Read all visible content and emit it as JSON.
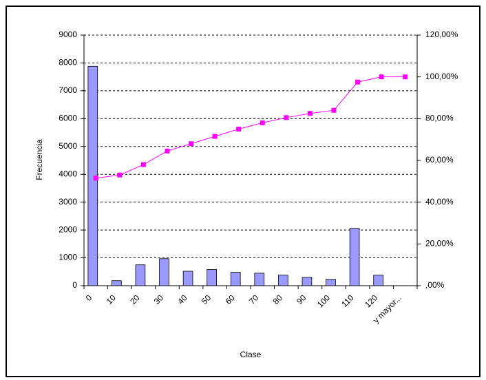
{
  "chart_data": {
    "type": "bar",
    "x_label": "Clase",
    "y_label": "Frecuencia",
    "categories": [
      "0",
      "10",
      "20",
      "30",
      "40",
      "50",
      "60",
      "70",
      "80",
      "90",
      "100",
      "110",
      "120",
      "y mayor..."
    ],
    "series": [
      {
        "type": "bar",
        "color": "#9999ff",
        "values": [
          7880,
          180,
          750,
          970,
          520,
          580,
          480,
          450,
          380,
          300,
          230,
          2060,
          380,
          0
        ]
      },
      {
        "type": "line",
        "axis": "y2",
        "color": "#ff00ff",
        "values": [
          51.5,
          53,
          58,
          64.5,
          68,
          71.5,
          75,
          78,
          80.5,
          82.5,
          84,
          97.5,
          100,
          100
        ]
      }
    ],
    "ylim": [
      0,
      9000
    ],
    "yticks": [
      0,
      1000,
      2000,
      3000,
      4000,
      5000,
      6000,
      7000,
      8000,
      9000
    ],
    "y2lim": [
      0,
      120
    ],
    "y2ticks": [
      {
        "value": 0,
        "label": ",00%"
      },
      {
        "value": 20,
        "label": "20,00%"
      },
      {
        "value": 40,
        "label": "40,00%"
      },
      {
        "value": 60,
        "label": "60,00%"
      },
      {
        "value": 80,
        "label": "80,00%"
      },
      {
        "value": 100,
        "label": "100,00%"
      },
      {
        "value": 120,
        "label": "120,00%"
      }
    ],
    "grid": true
  }
}
